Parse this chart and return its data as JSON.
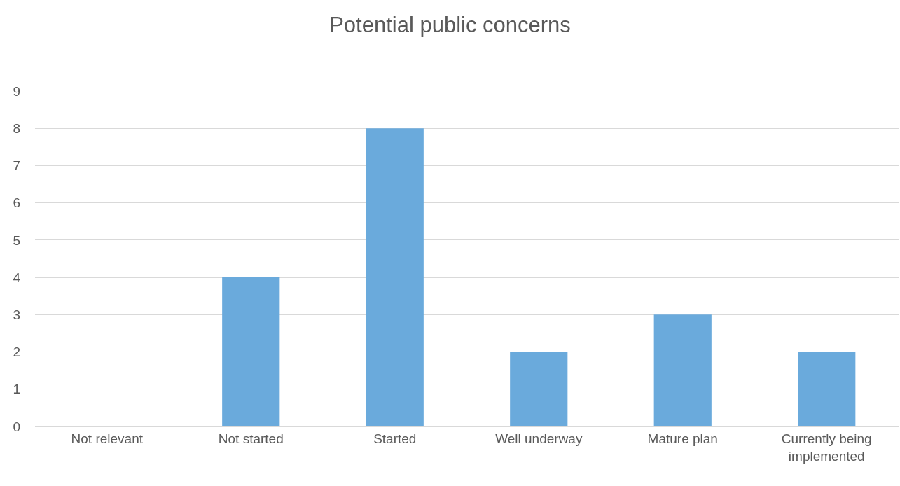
{
  "chart_data": {
    "type": "bar",
    "title": "Potential public concerns",
    "categories": [
      "Not relevant",
      "Not started",
      "Started",
      "Well underway",
      "Mature plan",
      "Currently being implemented"
    ],
    "values": [
      0,
      4,
      8,
      2,
      3,
      2
    ],
    "color": "#6aaadc",
    "ylim": [
      0,
      9
    ],
    "yticks": [
      0,
      1,
      2,
      3,
      4,
      5,
      6,
      7,
      8,
      9
    ],
    "grid": "y"
  }
}
